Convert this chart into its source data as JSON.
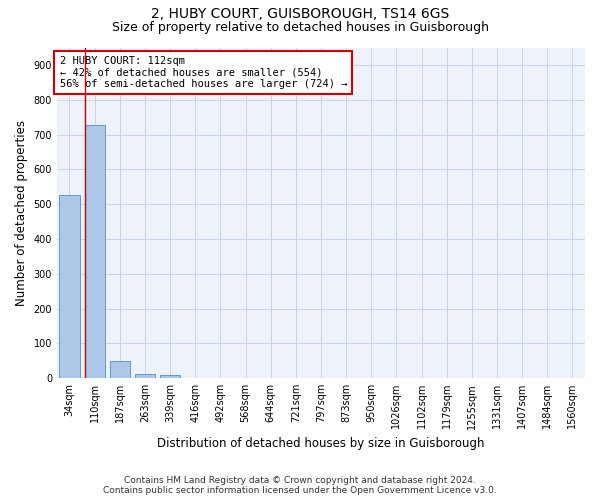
{
  "title_line1": "2, HUBY COURT, GUISBOROUGH, TS14 6GS",
  "title_line2": "Size of property relative to detached houses in Guisborough",
  "xlabel": "Distribution of detached houses by size in Guisborough",
  "ylabel": "Number of detached properties",
  "categories": [
    "34sqm",
    "110sqm",
    "187sqm",
    "263sqm",
    "339sqm",
    "416sqm",
    "492sqm",
    "568sqm",
    "644sqm",
    "721sqm",
    "797sqm",
    "873sqm",
    "950sqm",
    "1026sqm",
    "1102sqm",
    "1179sqm",
    "1255sqm",
    "1331sqm",
    "1407sqm",
    "1484sqm",
    "1560sqm"
  ],
  "bar_values": [
    527,
    727,
    48,
    12,
    10,
    0,
    0,
    0,
    0,
    0,
    0,
    0,
    0,
    0,
    0,
    0,
    0,
    0,
    0,
    0,
    0
  ],
  "bar_color": "#aec6e8",
  "bar_edge_color": "#5b9bd5",
  "annotation_text": "2 HUBY COURT: 112sqm\n← 42% of detached houses are smaller (554)\n56% of semi-detached houses are larger (724) →",
  "annotation_box_color": "#ffffff",
  "annotation_box_edge_color": "#cc0000",
  "vline_color": "#cc0000",
  "vline_x": 0.6,
  "ylim": [
    0,
    950
  ],
  "yticks": [
    0,
    100,
    200,
    300,
    400,
    500,
    600,
    700,
    800,
    900
  ],
  "grid_color": "#c8d4e8",
  "background_color": "#eef2fa",
  "footer_line1": "Contains HM Land Registry data © Crown copyright and database right 2024.",
  "footer_line2": "Contains public sector information licensed under the Open Government Licence v3.0.",
  "title_fontsize": 10,
  "subtitle_fontsize": 9,
  "axis_label_fontsize": 8.5,
  "tick_fontsize": 7,
  "annotation_fontsize": 7.5,
  "footer_fontsize": 6.5
}
